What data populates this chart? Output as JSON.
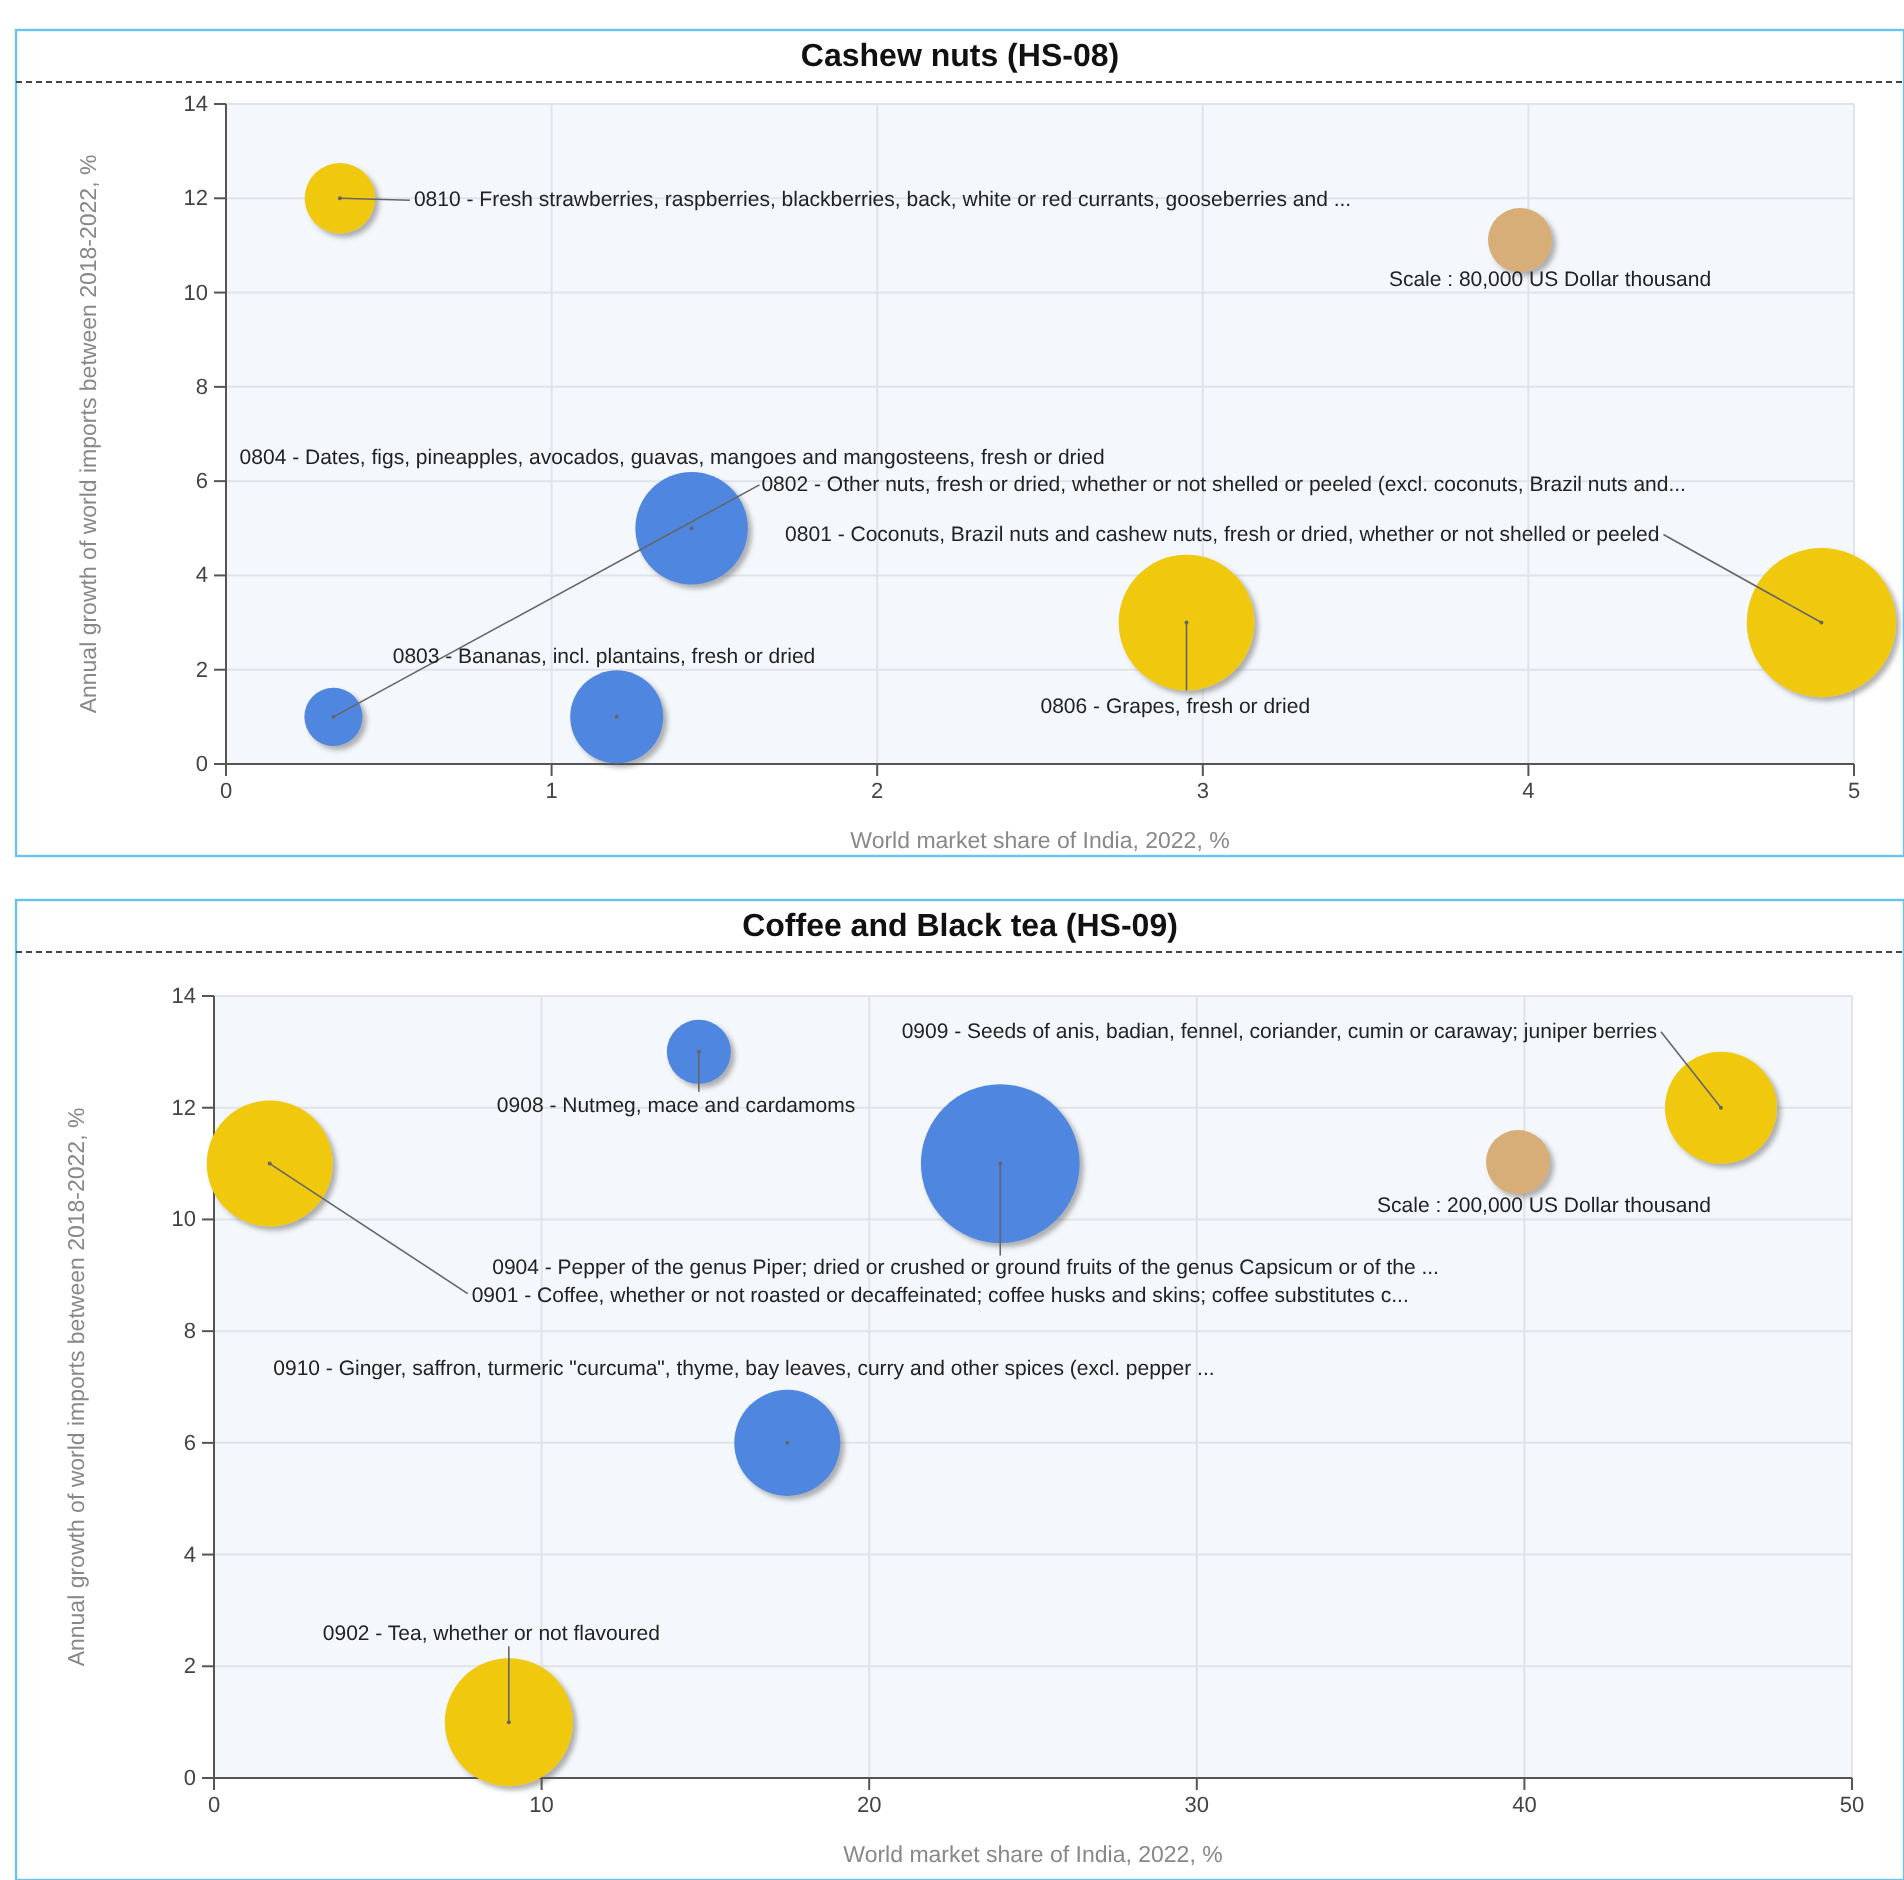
{
  "chart_data": [
    {
      "type": "bubble",
      "title": "Cashew nuts (HS-08)",
      "xlabel": "World market share of India, 2022, %",
      "ylabel": "Annual growth of world imports between 2018-2022, %",
      "x": [
        0.35,
        1.43,
        0.33,
        1.2,
        2.95,
        4.9
      ],
      "values": [
        12,
        5,
        1,
        1,
        3,
        3
      ],
      "sizes": [
        97000,
        247000,
        66000,
        169000,
        360000,
        435000
      ],
      "colors": [
        "#f0c80a",
        "#4f86e0",
        "#4f86e0",
        "#4f86e0",
        "#f0c80a",
        "#f0c80a"
      ],
      "size_legend": [
        {
          "value": 80000,
          "label": "Scale : 80,000 US Dollar thousand"
        }
      ],
      "xlim": [
        0,
        5
      ],
      "xticks": [
        0,
        1,
        2,
        3,
        4,
        5
      ],
      "ylim": [
        0,
        14
      ],
      "yticks": [
        0,
        2,
        4,
        6,
        8,
        10,
        12,
        14
      ],
      "grid": true,
      "annotations": [
        {
          "text": "0810 - Fresh strawberries, raspberries, blackberries, back, white or red currants, gooseberries and ...",
          "x": 0.35,
          "y": 12
        },
        {
          "text": "0804 - Dates, figs, pineapples, avocados, guavas, mangoes and mangosteens, fresh or dried",
          "x": 1.43,
          "y": 5
        },
        {
          "text": "0802 - Other nuts, fresh or dried, whether or not shelled or peeled (excl. coconuts, Brazil nuts and...",
          "x": 0.33,
          "y": 1
        },
        {
          "text": "0801 - Coconuts, Brazil nuts and cashew nuts, fresh or dried, whether or not shelled or peeled",
          "x": 4.9,
          "y": 3
        },
        {
          "text": "0806 - Grapes, fresh or dried",
          "x": 2.95,
          "y": 3
        },
        {
          "text": "0803 - Bananas, incl. plantains, fresh or dried",
          "x": 1.2,
          "y": 1
        }
      ]
    },
    {
      "type": "bubble",
      "title": "Coffee and Black tea (HS-09)",
      "xlabel": "World market share of India, 2022, %",
      "ylabel": "Annual growth of world imports between 2018-2022, %",
      "x": [
        1.7,
        14.8,
        24,
        46,
        17.5,
        9
      ],
      "values": [
        11,
        13,
        11,
        12,
        6,
        1
      ],
      "sizes": [
        775000,
        200000,
        1230000,
        612000,
        549000,
        800000
      ],
      "colors": [
        "#f0c80a",
        "#4f86e0",
        "#4f86e0",
        "#f0c80a",
        "#4f86e0",
        "#f0c80a"
      ],
      "size_legend": [
        {
          "value": 200000,
          "label": "Scale : 200,000 US Dollar thousand"
        }
      ],
      "xlim": [
        0,
        50
      ],
      "xticks": [
        0,
        10,
        20,
        30,
        40,
        50
      ],
      "ylim": [
        0,
        14
      ],
      "yticks": [
        0,
        2,
        4,
        6,
        8,
        10,
        12,
        14
      ],
      "grid": true,
      "annotations": [
        {
          "text": "0901 - Coffee, whether or not roasted or decaffeinated; coffee husks and skins; coffee substitutes c...",
          "x": 1.7,
          "y": 11
        },
        {
          "text": "0908 - Nutmeg, mace and cardamoms",
          "x": 14.8,
          "y": 13
        },
        {
          "text": "0904 - Pepper of the genus Piper; dried or crushed or ground fruits of the genus Capsicum or of the ...",
          "x": 24,
          "y": 11
        },
        {
          "text": "0909 - Seeds of anis, badian, fennel, coriander, cumin or caraway; juniper berries",
          "x": 46,
          "y": 12
        },
        {
          "text": "0910 - Ginger, saffron, turmeric \"curcuma\", thyme, bay leaves, curry and other spices (excl. pepper ...",
          "x": 17.5,
          "y": 6
        },
        {
          "text": "0902 - Tea, whether or not flavoured",
          "x": 9,
          "y": 1
        }
      ]
    }
  ]
}
